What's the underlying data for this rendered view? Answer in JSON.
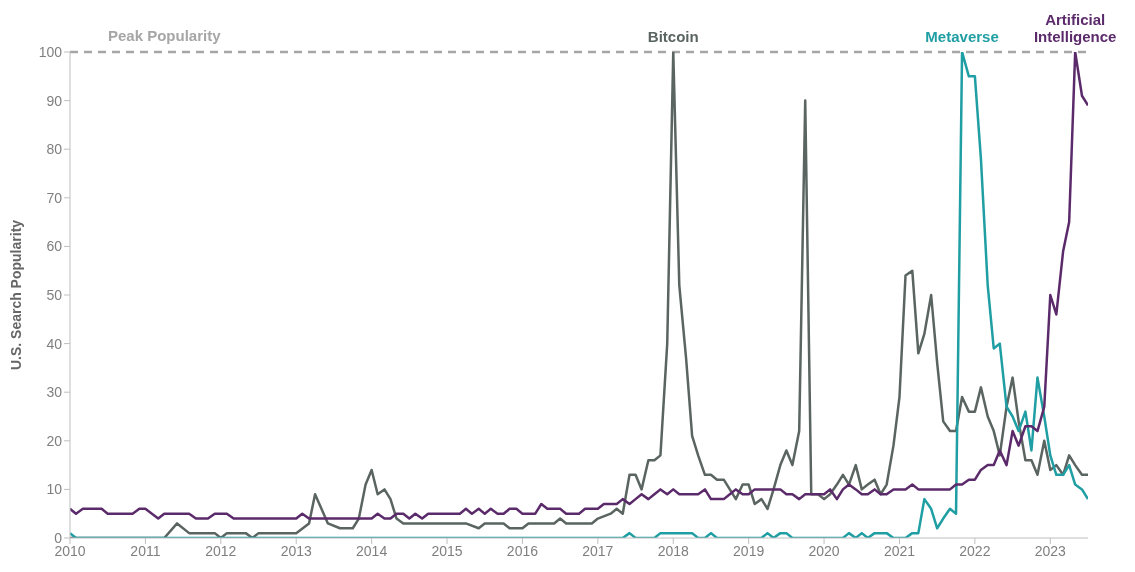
{
  "chart_data": {
    "type": "line",
    "ylabel": "U.S. Search Popularity",
    "xlim": [
      2010,
      2023.5
    ],
    "xticks": [
      2010,
      2011,
      2012,
      2013,
      2014,
      2015,
      2016,
      2017,
      2018,
      2019,
      2020,
      2021,
      2022,
      2023
    ],
    "ylim": [
      0,
      100
    ],
    "yticks": [
      0,
      10,
      20,
      30,
      40,
      50,
      60,
      70,
      80,
      90,
      100
    ],
    "grid": false,
    "legend": false,
    "marker": "none",
    "line_style": "solid",
    "ref_lines": [
      {
        "axis": "y",
        "value": 100,
        "label": "Peak Popularity",
        "color": "#a6a6a6",
        "line_style": "dashed"
      }
    ],
    "series": [
      {
        "name": "Bitcoin",
        "color": "#5a6461",
        "x": [
          2010,
          2011.25,
          2011.42,
          2011.58,
          2011.92,
          2012,
          2012.08,
          2012.33,
          2012.42,
          2012.5,
          2013,
          2013.17,
          2013.25,
          2013.42,
          2013.58,
          2013.75,
          2013.83,
          2013.92,
          2014,
          2014.08,
          2014.17,
          2014.25,
          2014.33,
          2014.42,
          2015.25,
          2015.42,
          2015.5,
          2015.75,
          2015.83,
          2016,
          2016.08,
          2016.42,
          2016.5,
          2016.58,
          2016.92,
          2017,
          2017.17,
          2017.25,
          2017.33,
          2017.42,
          2017.5,
          2017.58,
          2017.67,
          2017.75,
          2017.83,
          2017.92,
          2018,
          2018.08,
          2018.17,
          2018.25,
          2018.33,
          2018.42,
          2018.5,
          2018.58,
          2018.67,
          2018.75,
          2018.83,
          2018.92,
          2019,
          2019.08,
          2019.17,
          2019.25,
          2019.33,
          2019.42,
          2019.5,
          2019.58,
          2019.67,
          2019.75,
          2019.83,
          2019.92,
          2020,
          2020.08,
          2020.17,
          2020.25,
          2020.33,
          2020.42,
          2020.5,
          2020.58,
          2020.67,
          2020.75,
          2020.83,
          2020.92,
          2021,
          2021.08,
          2021.17,
          2021.25,
          2021.33,
          2021.42,
          2021.5,
          2021.58,
          2021.67,
          2021.75,
          2021.83,
          2021.92,
          2022,
          2022.08,
          2022.17,
          2022.25,
          2022.33,
          2022.42,
          2022.5,
          2022.58,
          2022.67,
          2022.75,
          2022.83,
          2022.92,
          2023,
          2023.08,
          2023.17,
          2023.25,
          2023.33,
          2023.42,
          2023.5
        ],
        "values": [
          0,
          0,
          3,
          1,
          1,
          0,
          1,
          1,
          0,
          1,
          1,
          3,
          9,
          3,
          2,
          2,
          4,
          11,
          14,
          9,
          10,
          8,
          4,
          3,
          3,
          2,
          3,
          3,
          2,
          2,
          3,
          3,
          4,
          3,
          3,
          4,
          5,
          6,
          5,
          13,
          13,
          10,
          16,
          16,
          17,
          40,
          100,
          52,
          37,
          21,
          17,
          13,
          13,
          12,
          12,
          10,
          8,
          11,
          11,
          7,
          8,
          6,
          10,
          15,
          18,
          15,
          22,
          90,
          9,
          9,
          8,
          9,
          11,
          13,
          11,
          15,
          10,
          11,
          12,
          9,
          11,
          19,
          29,
          54,
          55,
          38,
          42,
          50,
          36,
          24,
          22,
          22,
          29,
          26,
          26,
          31,
          25,
          22,
          17,
          27,
          33,
          24,
          16,
          16,
          13,
          20,
          14,
          15,
          13,
          17,
          15,
          13,
          13
        ]
      },
      {
        "name": "Metaverse",
        "color": "#1f9ea3",
        "x": [
          2010,
          2010.08,
          2017.33,
          2017.42,
          2017.5,
          2017.75,
          2017.83,
          2018.25,
          2018.33,
          2018.42,
          2018.5,
          2018.58,
          2019.17,
          2019.25,
          2019.33,
          2019.42,
          2019.5,
          2019.58,
          2020.25,
          2020.33,
          2020.42,
          2020.5,
          2020.58,
          2020.67,
          2020.83,
          2020.92,
          2021.08,
          2021.17,
          2021.25,
          2021.33,
          2021.42,
          2021.5,
          2021.58,
          2021.67,
          2021.75,
          2021.83,
          2021.92,
          2022,
          2022.08,
          2022.17,
          2022.25,
          2022.33,
          2022.42,
          2022.5,
          2022.58,
          2022.67,
          2022.75,
          2022.83,
          2022.92,
          2023,
          2023.08,
          2023.17,
          2023.25,
          2023.33,
          2023.42,
          2023.5
        ],
        "values": [
          1,
          0,
          0,
          1,
          0,
          0,
          1,
          1,
          0,
          0,
          1,
          0,
          0,
          1,
          0,
          1,
          1,
          0,
          0,
          1,
          0,
          1,
          0,
          1,
          1,
          0,
          0,
          1,
          1,
          8,
          6,
          2,
          4,
          6,
          5,
          100,
          95,
          95,
          78,
          52,
          39,
          40,
          27,
          25,
          22,
          26,
          18,
          33,
          25,
          17,
          13,
          13,
          15,
          11,
          10,
          8
        ]
      },
      {
        "name": "Artificial Intelligence",
        "color": "#5b2a6b",
        "x": [
          2010,
          2010.08,
          2010.17,
          2010.42,
          2010.5,
          2010.83,
          2010.92,
          2011,
          2011.17,
          2011.25,
          2011.58,
          2011.67,
          2011.83,
          2011.92,
          2012.08,
          2012.17,
          2013,
          2013.08,
          2013.17,
          2014,
          2014.08,
          2014.17,
          2014.25,
          2014.33,
          2014.42,
          2014.5,
          2014.58,
          2014.67,
          2014.75,
          2015.17,
          2015.25,
          2015.33,
          2015.42,
          2015.5,
          2015.58,
          2015.67,
          2015.75,
          2015.83,
          2015.92,
          2016,
          2016.17,
          2016.25,
          2016.33,
          2016.5,
          2016.58,
          2016.75,
          2016.83,
          2017,
          2017.08,
          2017.25,
          2017.33,
          2017.42,
          2017.5,
          2017.58,
          2017.67,
          2017.75,
          2017.83,
          2017.92,
          2018,
          2018.08,
          2018.33,
          2018.42,
          2018.5,
          2018.67,
          2018.75,
          2018.83,
          2018.92,
          2019,
          2019.08,
          2019.42,
          2019.5,
          2019.58,
          2019.67,
          2019.75,
          2020,
          2020.08,
          2020.17,
          2020.25,
          2020.33,
          2020.42,
          2020.5,
          2020.58,
          2020.67,
          2020.75,
          2020.83,
          2020.92,
          2021,
          2021.08,
          2021.17,
          2021.25,
          2021.67,
          2021.75,
          2021.83,
          2021.92,
          2022,
          2022.08,
          2022.17,
          2022.25,
          2022.33,
          2022.42,
          2022.5,
          2022.58,
          2022.67,
          2022.75,
          2022.83,
          2022.92,
          2023,
          2023.08,
          2023.17,
          2023.25,
          2023.33,
          2023.42,
          2023.5
        ],
        "values": [
          6,
          5,
          6,
          6,
          5,
          5,
          6,
          6,
          4,
          5,
          5,
          4,
          4,
          5,
          5,
          4,
          4,
          5,
          4,
          4,
          5,
          4,
          4,
          5,
          5,
          4,
          5,
          4,
          5,
          5,
          6,
          5,
          6,
          5,
          6,
          5,
          5,
          6,
          6,
          5,
          5,
          7,
          6,
          6,
          5,
          5,
          6,
          6,
          7,
          7,
          8,
          7,
          8,
          9,
          8,
          9,
          10,
          9,
          10,
          9,
          9,
          10,
          8,
          8,
          9,
          10,
          9,
          9,
          10,
          10,
          9,
          9,
          8,
          9,
          9,
          10,
          8,
          10,
          11,
          10,
          9,
          9,
          10,
          9,
          9,
          10,
          10,
          10,
          11,
          10,
          10,
          11,
          11,
          12,
          12,
          14,
          15,
          15,
          18,
          15,
          22,
          19,
          23,
          23,
          22,
          27,
          50,
          46,
          59,
          65,
          100,
          91,
          89
        ]
      }
    ]
  }
}
